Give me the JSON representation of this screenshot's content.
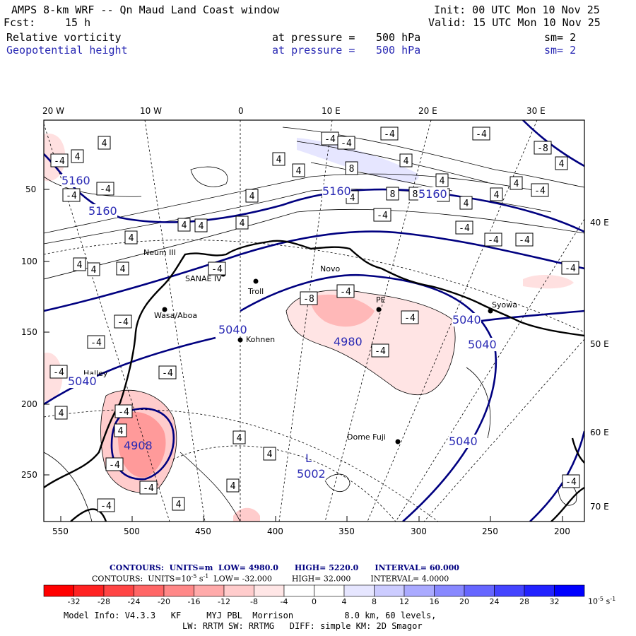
{
  "header": {
    "title": "AMPS 8-km WRF -- Qn Maud Land Coast window",
    "fcst_label": "Fcst:",
    "fcst_value": "15 h",
    "init": "Init: 00 UTC Mon 10 Nov 25",
    "valid": "Valid: 15 UTC Mon 10 Nov 25",
    "field1": {
      "name": "Relative vorticity",
      "pressure_label": "at pressure =",
      "pressure_value": "500 hPa",
      "sm": "sm= 2"
    },
    "field2": {
      "name": "Geopotential height",
      "pressure_label": "at pressure =",
      "pressure_value": "500 hPa",
      "sm": "sm= 2"
    }
  },
  "map": {
    "lon_labels_top": [
      "20 W",
      "10 W",
      "0",
      "10 E",
      "20 E",
      "30 E"
    ],
    "lon_labels_right": [
      "40 E",
      "50 E",
      "60 E",
      "70 E"
    ],
    "y_ticks_left": [
      "50",
      "100",
      "150",
      "200",
      "250"
    ],
    "x_ticks_bottom": [
      "550",
      "500",
      "450",
      "400",
      "350",
      "300",
      "250",
      "200"
    ],
    "stations": [
      "Neum III",
      "SANAE IV",
      "Troll",
      "Novo",
      "Kohnen",
      "Wasa/Aboa",
      "Halley",
      "PE",
      "Syowa",
      "Dome Fuji"
    ],
    "height_labels": [
      "5160",
      "5160",
      "5160",
      "5160",
      "5040",
      "5040",
      "5040",
      "5040",
      "5040",
      "4980",
      "4908",
      "5002"
    ],
    "low_marker": "L",
    "vort_box_labels": [
      "4",
      "-4",
      "-8",
      "8"
    ],
    "colors": {
      "height_contour": "#000080",
      "vort_contour": "#000000",
      "coast": "#000000"
    }
  },
  "footer": {
    "contour1": {
      "label": "CONTOURS:",
      "units": "UNITS=m",
      "low": "LOW= 4980.0",
      "high": "HIGH= 5220.0",
      "interval": "INTERVAL= 60.000"
    },
    "contour2": {
      "label": "CONTOURS:",
      "units": "UNITS=10",
      "units_exp": "-5",
      "units_tail": "s",
      "units_tail_exp": "-1",
      "low": "LOW= -32.000",
      "high": "HIGH= 32.000",
      "interval": "INTERVAL= 4.0000"
    },
    "colorbar": {
      "colors": [
        "#ff0000",
        "#ff2222",
        "#ff4444",
        "#ff6666",
        "#ff8888",
        "#ffaaaa",
        "#ffcccc",
        "#ffe6e6",
        "#ffffff",
        "#ffffff",
        "#e6e6ff",
        "#ccccff",
        "#aaaaff",
        "#8888ff",
        "#6666ff",
        "#4444ff",
        "#2222ff",
        "#0000ff"
      ],
      "ticks": [
        "-32",
        "-28",
        "-24",
        "-20",
        "-16",
        "-12",
        "-8",
        "-4",
        "0",
        "4",
        "8",
        "12",
        "16",
        "20",
        "24",
        "28",
        "32"
      ],
      "unit": "10",
      "unit_exp": "-5",
      "unit_tail": "s",
      "unit_tail_exp": "-1"
    },
    "model_info": "Model Info: V4.3.3   KF     MYJ PBL  Morrison          8.0 km, 60 levels,",
    "physics_info": "LW: RRTM SW: RRTMG   DIFF: simple KM: 2D Smagor"
  }
}
